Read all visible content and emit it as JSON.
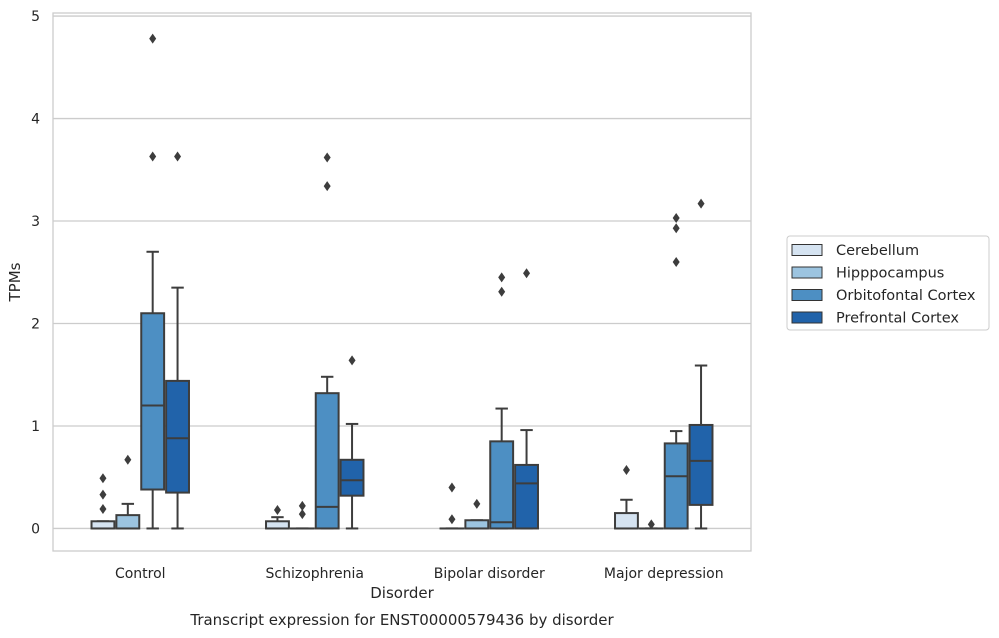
{
  "chart_data": {
    "type": "box",
    "caption": "Transcript expression for ENST00000579436 by disorder",
    "xlabel": "Disorder",
    "ylabel": "TPMs",
    "ylim": [
      -0.22,
      5.03
    ],
    "yticks": [
      0,
      1,
      2,
      3,
      4,
      5
    ],
    "grid": "horizontal",
    "legend_position": "right",
    "categories": [
      "Control",
      "Schizophrenia",
      "Bipolar disorder",
      "Major depression"
    ],
    "series": [
      {
        "name": "Cerebellum",
        "color": "#d5e3f1",
        "boxes": [
          {
            "whislo": 0,
            "q1": 0,
            "med": 0,
            "q3": 0.07,
            "whishi": 0.07,
            "fliers": [
              0.19,
              0.33,
              0.49
            ]
          },
          {
            "whislo": 0,
            "q1": 0,
            "med": 0,
            "q3": 0.07,
            "whishi": 0.11,
            "fliers": [
              0.18
            ]
          },
          {
            "whislo": 0,
            "q1": 0,
            "med": 0,
            "q3": 0,
            "whishi": 0,
            "fliers": [
              0.09,
              0.4
            ]
          },
          {
            "whislo": 0,
            "q1": 0,
            "med": 0,
            "q3": 0.15,
            "whishi": 0.28,
            "fliers": [
              0.57
            ]
          }
        ]
      },
      {
        "name": "Hipppocampus",
        "color": "#9cc4e0",
        "boxes": [
          {
            "whislo": 0,
            "q1": 0,
            "med": 0,
            "q3": 0.13,
            "whishi": 0.24,
            "fliers": [
              0.67
            ]
          },
          {
            "whislo": 0,
            "q1": 0,
            "med": 0,
            "q3": 0,
            "whishi": 0,
            "fliers": [
              0.14,
              0.22
            ]
          },
          {
            "whislo": 0,
            "q1": 0,
            "med": 0,
            "q3": 0.08,
            "whishi": 0.08,
            "fliers": [
              0.24
            ]
          },
          {
            "whislo": 0,
            "q1": 0,
            "med": 0,
            "q3": 0,
            "whishi": 0,
            "fliers": [
              0.04
            ]
          }
        ]
      },
      {
        "name": "Orbitofontal Cortex",
        "color": "#4d8fc3",
        "boxes": [
          {
            "whislo": 0,
            "q1": 0.38,
            "med": 1.2,
            "q3": 2.1,
            "whishi": 2.7,
            "fliers": [
              3.63,
              4.78
            ]
          },
          {
            "whislo": 0,
            "q1": 0,
            "med": 0.21,
            "q3": 1.32,
            "whishi": 1.48,
            "fliers": [
              3.34,
              3.62
            ]
          },
          {
            "whislo": 0,
            "q1": 0,
            "med": 0.06,
            "q3": 0.85,
            "whishi": 1.17,
            "fliers": [
              2.31,
              2.45
            ]
          },
          {
            "whislo": 0,
            "q1": 0,
            "med": 0.51,
            "q3": 0.83,
            "whishi": 0.95,
            "fliers": [
              2.6,
              2.93,
              3.03
            ]
          }
        ]
      },
      {
        "name": "Prefrontal Cortex",
        "color": "#2163aa",
        "boxes": [
          {
            "whislo": 0,
            "q1": 0.35,
            "med": 0.88,
            "q3": 1.44,
            "whishi": 2.35,
            "fliers": [
              3.63
            ]
          },
          {
            "whislo": 0,
            "q1": 0.32,
            "med": 0.47,
            "q3": 0.67,
            "whishi": 1.02,
            "fliers": [
              1.64
            ]
          },
          {
            "whislo": 0,
            "q1": 0,
            "med": 0.44,
            "q3": 0.62,
            "whishi": 0.96,
            "fliers": [
              2.49
            ]
          },
          {
            "whislo": 0,
            "q1": 0.23,
            "med": 0.66,
            "q3": 1.01,
            "whishi": 1.59,
            "fliers": [
              3.17
            ]
          }
        ]
      }
    ]
  }
}
